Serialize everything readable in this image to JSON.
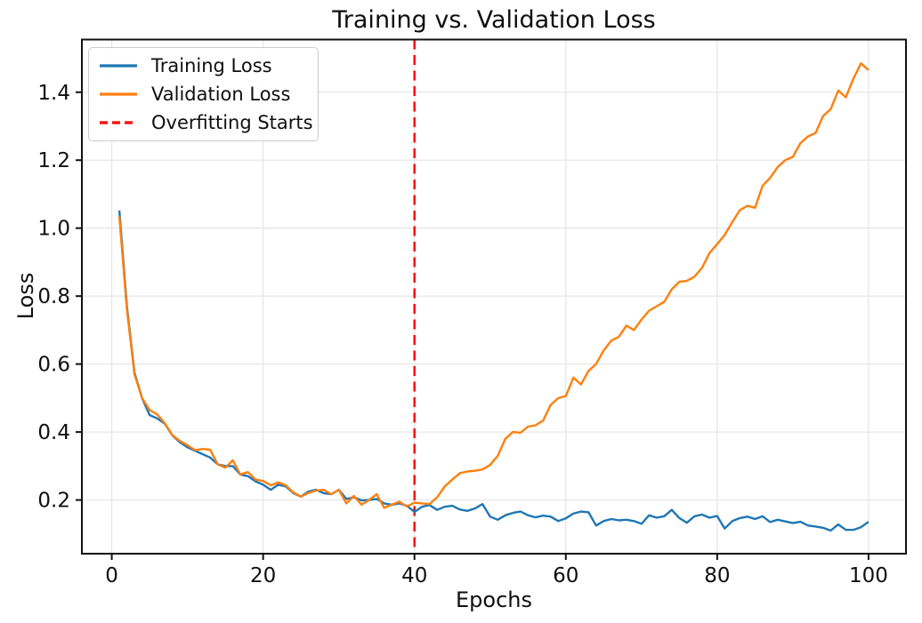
{
  "title": "Training vs. Validation Loss",
  "colors": {
    "training": "#1f77b4",
    "validation": "#ff7f0e",
    "overfitting_line": "#ff0000",
    "grid": "#e7e7e7",
    "spine": "#111111",
    "text": "#0f0f0f",
    "legend_border": "#cccccc"
  },
  "legend": {
    "entries": [
      {
        "label": "Training Loss",
        "color": "#1f77b4",
        "dash": "solid"
      },
      {
        "label": "Validation Loss",
        "color": "#ff7f0e",
        "dash": "solid"
      },
      {
        "label": "Overfitting Starts",
        "color": "#ff0000",
        "dash": "dashed"
      }
    ]
  },
  "chart_data": {
    "type": "line",
    "title": "Training vs. Validation Loss",
    "xlabel": "Epochs",
    "ylabel": "Loss",
    "xlim": [
      -3.95,
      104.95
    ],
    "ylim": [
      0.042,
      1.555
    ],
    "grid": true,
    "legend_position": "upper left",
    "x_ticks": {
      "values": [
        0,
        20,
        40,
        60,
        80,
        100
      ],
      "labels": [
        "0",
        "20",
        "40",
        "60",
        "80",
        "100"
      ]
    },
    "y_ticks": {
      "values": [
        0.2,
        0.4,
        0.6,
        0.8,
        1.0,
        1.2,
        1.4
      ],
      "labels": [
        "0.2",
        "0.4",
        "0.6",
        "0.8",
        "1.0",
        "1.2",
        "1.4"
      ]
    },
    "annotation_vline": {
      "x": 40,
      "label": "Overfitting Starts",
      "color": "#ff0000",
      "style": "dashed"
    },
    "x": [
      1,
      2,
      3,
      4,
      5,
      6,
      7,
      8,
      9,
      10,
      11,
      12,
      13,
      14,
      15,
      16,
      17,
      18,
      19,
      20,
      21,
      22,
      23,
      24,
      25,
      26,
      27,
      28,
      29,
      30,
      31,
      32,
      33,
      34,
      35,
      36,
      37,
      38,
      39,
      40,
      41,
      42,
      43,
      44,
      45,
      46,
      47,
      48,
      49,
      50,
      51,
      52,
      53,
      54,
      55,
      56,
      57,
      58,
      59,
      60,
      61,
      62,
      63,
      64,
      65,
      66,
      67,
      68,
      69,
      70,
      71,
      72,
      73,
      74,
      75,
      76,
      77,
      78,
      79,
      80,
      81,
      82,
      83,
      84,
      85,
      86,
      87,
      88,
      89,
      90,
      91,
      92,
      93,
      94,
      95,
      96,
      97,
      98,
      99,
      100
    ],
    "series": [
      {
        "name": "Training Loss",
        "color": "#1f77b4",
        "style": "solid",
        "values": [
          1.052,
          0.77,
          0.575,
          0.5,
          0.45,
          0.44,
          0.425,
          0.39,
          0.37,
          0.355,
          0.345,
          0.335,
          0.325,
          0.305,
          0.3,
          0.3,
          0.275,
          0.27,
          0.255,
          0.245,
          0.23,
          0.245,
          0.24,
          0.22,
          0.21,
          0.225,
          0.23,
          0.22,
          0.217,
          0.23,
          0.203,
          0.208,
          0.199,
          0.2,
          0.203,
          0.19,
          0.186,
          0.19,
          0.183,
          0.165,
          0.18,
          0.185,
          0.171,
          0.18,
          0.183,
          0.172,
          0.168,
          0.175,
          0.188,
          0.151,
          0.142,
          0.155,
          0.162,
          0.166,
          0.155,
          0.149,
          0.154,
          0.151,
          0.138,
          0.146,
          0.16,
          0.166,
          0.164,
          0.125,
          0.138,
          0.144,
          0.14,
          0.142,
          0.138,
          0.13,
          0.155,
          0.148,
          0.152,
          0.171,
          0.147,
          0.133,
          0.152,
          0.157,
          0.148,
          0.153,
          0.116,
          0.138,
          0.147,
          0.151,
          0.144,
          0.152,
          0.135,
          0.142,
          0.137,
          0.132,
          0.136,
          0.125,
          0.122,
          0.118,
          0.11,
          0.128,
          0.112,
          0.112,
          0.12,
          0.136
        ]
      },
      {
        "name": "Validation Loss",
        "color": "#ff7f0e",
        "style": "solid",
        "values": [
          1.035,
          0.76,
          0.57,
          0.5,
          0.465,
          0.452,
          0.426,
          0.391,
          0.374,
          0.361,
          0.347,
          0.35,
          0.348,
          0.305,
          0.295,
          0.317,
          0.275,
          0.282,
          0.26,
          0.256,
          0.243,
          0.252,
          0.243,
          0.222,
          0.21,
          0.221,
          0.228,
          0.23,
          0.217,
          0.23,
          0.19,
          0.212,
          0.186,
          0.2,
          0.217,
          0.177,
          0.186,
          0.195,
          0.181,
          0.192,
          0.19,
          0.188,
          0.208,
          0.24,
          0.26,
          0.279,
          0.284,
          0.286,
          0.29,
          0.303,
          0.33,
          0.38,
          0.4,
          0.398,
          0.416,
          0.42,
          0.434,
          0.48,
          0.5,
          0.506,
          0.56,
          0.54,
          0.58,
          0.6,
          0.64,
          0.669,
          0.68,
          0.713,
          0.7,
          0.731,
          0.757,
          0.77,
          0.783,
          0.82,
          0.842,
          0.845,
          0.857,
          0.883,
          0.927,
          0.953,
          0.98,
          1.018,
          1.053,
          1.066,
          1.06,
          1.125,
          1.148,
          1.18,
          1.2,
          1.21,
          1.25,
          1.27,
          1.28,
          1.33,
          1.35,
          1.405,
          1.385,
          1.44,
          1.485,
          1.465
        ]
      }
    ]
  }
}
